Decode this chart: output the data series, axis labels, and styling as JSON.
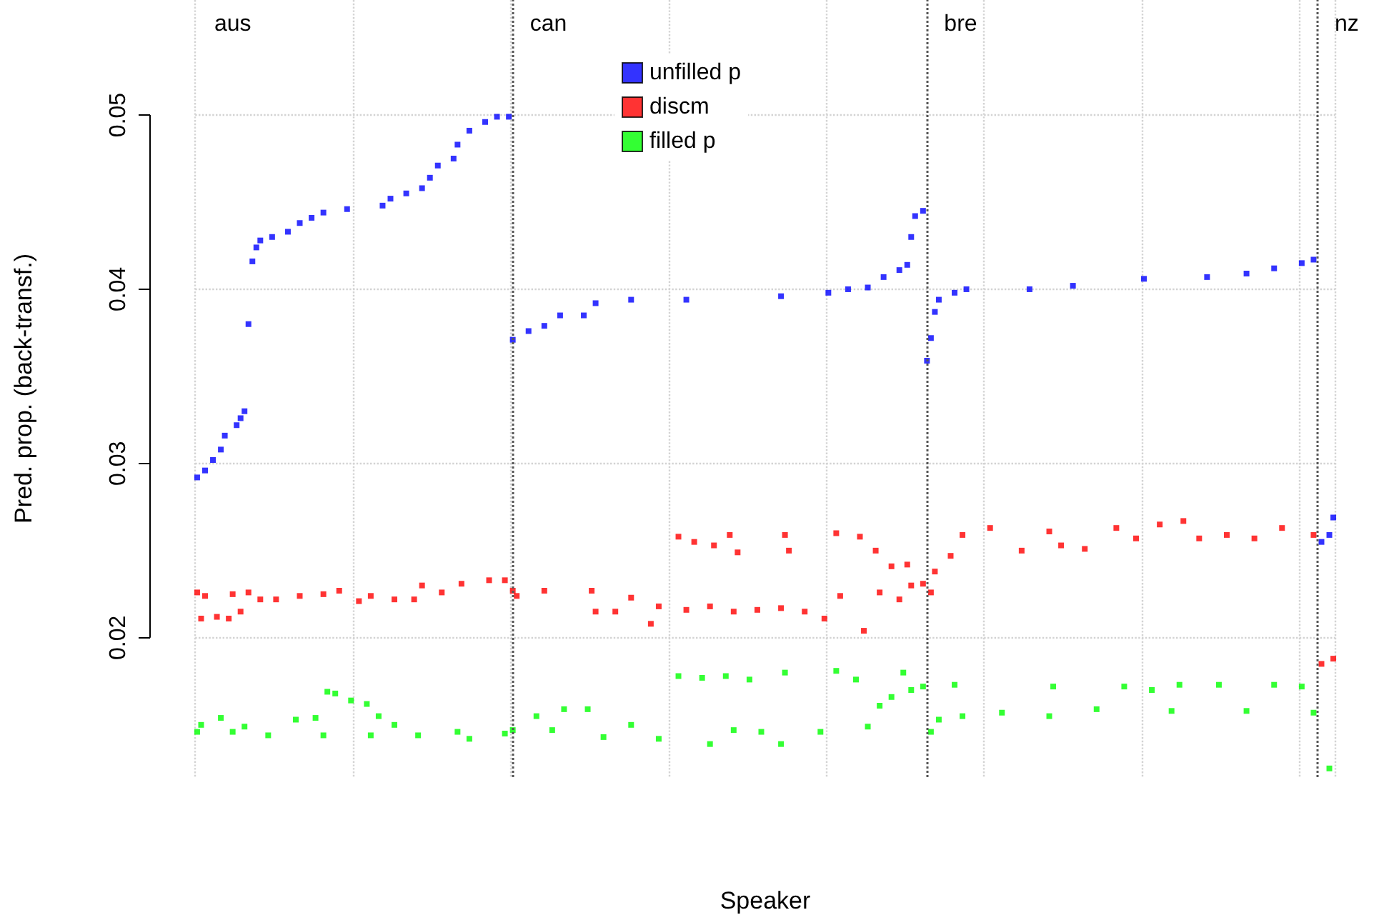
{
  "chart_data": {
    "type": "scatter",
    "xlabel": "Speaker",
    "ylabel": "Pred. prop. (back-transf.)",
    "ylim": [
      0.012,
      0.0566
    ],
    "yticks": [
      0.02,
      0.03,
      0.04,
      0.05
    ],
    "grid": true,
    "legend": "top",
    "marker": "square",
    "tick_labels": "y",
    "annotations": [
      "aus",
      "can",
      "bre",
      "nz"
    ],
    "categories": [
      null,
      null,
      null,
      null,
      null,
      null,
      null,
      null,
      null,
      null,
      null,
      null,
      null,
      null,
      null,
      null,
      null,
      null,
      null,
      null,
      null,
      null,
      null,
      null,
      null,
      null,
      null,
      null,
      null,
      null,
      null,
      null,
      null,
      null,
      null,
      null,
      null,
      null,
      null,
      null,
      null,
      null,
      null,
      null,
      null,
      null,
      null,
      null,
      null,
      null,
      null,
      null,
      null,
      null,
      null,
      null,
      null,
      null,
      null,
      null,
      null,
      null,
      null,
      null,
      null,
      null,
      null,
      null,
      null,
      null,
      null,
      null,
      null,
      null,
      null,
      null,
      null,
      null,
      null,
      null,
      null,
      null,
      null,
      null,
      null,
      null,
      null,
      null,
      null,
      null,
      null,
      null,
      null,
      null,
      null,
      null,
      null,
      null,
      null,
      null,
      null,
      null,
      null,
      null,
      null,
      null,
      null,
      null,
      null,
      null,
      null,
      null,
      null,
      null,
      null,
      null,
      null,
      null,
      null,
      null,
      null,
      null,
      null,
      null,
      null,
      null,
      null,
      null,
      null,
      null,
      null,
      null,
      null,
      null,
      null,
      null,
      null,
      null,
      null,
      null,
      null,
      null,
      null,
      null,
      null,
      null,
      null,
      null,
      null,
      null,
      null,
      null,
      null,
      null,
      null,
      null,
      null,
      null,
      null,
      null,
      null,
      null,
      null,
      null,
      null,
      null,
      null,
      null,
      null,
      null,
      null,
      null,
      null,
      null,
      null,
      null,
      null,
      null,
      null,
      null,
      null,
      null,
      null,
      null,
      null,
      null,
      null,
      null,
      null,
      null,
      null,
      null,
      null,
      null,
      null,
      null,
      null,
      null,
      null,
      null,
      null,
      null,
      null,
      null,
      null,
      null,
      null,
      null,
      null,
      null,
      null,
      null,
      null,
      null,
      null,
      null,
      null,
      null,
      null,
      null,
      null,
      null,
      null,
      null,
      null,
      null,
      null,
      null,
      null,
      null,
      null,
      null,
      null,
      null,
      null,
      null,
      null,
      null,
      null,
      null,
      null,
      null,
      null,
      null,
      null,
      null,
      null,
      null,
      null,
      null,
      null,
      null,
      null,
      null,
      null,
      null,
      null,
      null,
      null,
      null,
      null,
      null,
      null,
      null,
      null,
      null,
      null,
      null,
      null,
      null,
      null,
      null,
      null,
      null,
      null,
      null,
      null,
      null,
      null,
      null,
      null,
      null,
      null,
      null,
      null,
      null,
      null,
      null,
      null
    ],
    "series": [
      {
        "name": "unfilled p",
        "color": "#0000ff",
        "values": [
          0.0292,
          null,
          0.0296,
          null,
          0.0302,
          null,
          0.0308,
          0.0316,
          null,
          null,
          0.0322,
          0.0326,
          0.033,
          0.038,
          0.0416,
          0.0424,
          0.0428,
          null,
          null,
          0.043,
          null,
          null,
          null,
          0.0433,
          null,
          null,
          0.0438,
          null,
          null,
          0.0441,
          null,
          null,
          0.0444,
          null,
          null,
          null,
          null,
          null,
          0.0446,
          null,
          null,
          null,
          null,
          null,
          null,
          null,
          null,
          0.0448,
          null,
          0.0452,
          null,
          null,
          null,
          0.0455,
          null,
          null,
          null,
          0.0458,
          null,
          0.0464,
          null,
          0.0471,
          null,
          null,
          null,
          0.0475,
          0.0483,
          null,
          null,
          0.0491,
          null,
          null,
          null,
          0.0496,
          null,
          null,
          0.0499,
          null,
          null,
          0.0499,
          0.0371,
          null,
          null,
          null,
          0.0376,
          null,
          null,
          null,
          0.0379,
          null,
          null,
          null,
          0.0385,
          null,
          null,
          null,
          null,
          null,
          0.0385,
          null,
          null,
          0.0392,
          null,
          null,
          null,
          null,
          null,
          null,
          null,
          null,
          0.0394,
          null,
          null,
          null,
          null,
          null,
          null,
          null,
          null,
          null,
          null,
          null,
          null,
          null,
          0.0394,
          null,
          null,
          null,
          null,
          null,
          null,
          null,
          null,
          null,
          null,
          null,
          null,
          null,
          null,
          null,
          null,
          null,
          null,
          null,
          null,
          null,
          null,
          null,
          0.0396,
          null,
          null,
          null,
          null,
          null,
          null,
          null,
          null,
          null,
          null,
          null,
          0.0398,
          null,
          null,
          null,
          null,
          0.04,
          null,
          null,
          null,
          null,
          0.0401,
          null,
          null,
          null,
          0.0407,
          null,
          null,
          null,
          0.0411,
          null,
          0.0414,
          0.043,
          0.0442,
          null,
          0.0445,
          0.0359,
          0.0372,
          0.0387,
          0.0394,
          null,
          null,
          null,
          0.0398,
          null,
          null,
          0.04,
          null,
          null,
          null,
          null,
          null,
          null,
          null,
          null,
          null,
          null,
          null,
          null,
          null,
          null,
          null,
          0.04,
          null,
          null,
          null,
          null,
          null,
          null,
          null,
          null,
          null,
          null,
          0.0402,
          null,
          null,
          null,
          null,
          null,
          null,
          null,
          null,
          null,
          null,
          null,
          null,
          null,
          null,
          null,
          null,
          null,
          0.0406,
          null,
          null,
          null,
          null,
          null,
          null,
          null,
          null,
          null,
          null,
          null,
          null,
          null,
          null,
          null,
          0.0407,
          null,
          null,
          null,
          null,
          null,
          null,
          null,
          null,
          null,
          0.0409,
          null,
          null,
          null,
          null,
          null,
          null,
          0.0412,
          null,
          null,
          null,
          null,
          null,
          null,
          0.0415,
          null,
          null,
          0.0417,
          null,
          0.0255,
          null,
          0.0259,
          0.0269
        ]
      },
      {
        "name": "discm",
        "color": "#ff0000",
        "values": [
          0.0226,
          0.0211,
          0.0224,
          null,
          null,
          0.0212,
          null,
          null,
          0.0211,
          0.0225,
          null,
          0.0215,
          null,
          0.0226,
          null,
          null,
          0.0222,
          null,
          null,
          null,
          0.0222,
          null,
          null,
          null,
          null,
          null,
          0.0224,
          null,
          null,
          null,
          null,
          null,
          0.0225,
          null,
          null,
          null,
          0.0227,
          null,
          null,
          null,
          null,
          0.0221,
          null,
          null,
          0.0224,
          null,
          null,
          null,
          null,
          null,
          0.0222,
          null,
          null,
          null,
          null,
          0.0222,
          null,
          0.023,
          null,
          null,
          null,
          null,
          0.0226,
          null,
          null,
          null,
          null,
          0.0231,
          null,
          null,
          null,
          null,
          null,
          null,
          0.0233,
          null,
          null,
          null,
          0.0233,
          null,
          0.0227,
          0.0224,
          null,
          null,
          null,
          null,
          null,
          null,
          0.0227,
          null,
          null,
          null,
          null,
          null,
          null,
          null,
          null,
          null,
          null,
          null,
          0.0227,
          0.0215,
          null,
          null,
          null,
          null,
          0.0215,
          null,
          null,
          null,
          0.0223,
          null,
          null,
          null,
          null,
          0.0208,
          null,
          0.0218,
          null,
          null,
          null,
          null,
          0.0258,
          null,
          0.0216,
          null,
          0.0255,
          null,
          null,
          null,
          0.0218,
          0.0253,
          null,
          null,
          null,
          0.0259,
          0.0215,
          0.0249,
          null,
          null,
          null,
          null,
          0.0216,
          null,
          null,
          null,
          null,
          null,
          0.0217,
          0.0259,
          0.025,
          null,
          null,
          null,
          0.0215,
          null,
          null,
          null,
          null,
          0.0211,
          null,
          null,
          0.026,
          0.0224,
          null,
          null,
          null,
          null,
          0.0258,
          0.0204,
          null,
          null,
          0.025,
          0.0226,
          null,
          null,
          0.0241,
          null,
          0.0222,
          null,
          0.0242,
          0.023,
          null,
          null,
          0.0231,
          null,
          0.0226,
          0.0238,
          null,
          null,
          null,
          0.0247,
          null,
          null,
          0.0259,
          null,
          null,
          null,
          null,
          null,
          null,
          0.0263,
          null,
          null,
          null,
          null,
          null,
          null,
          null,
          0.025,
          null,
          null,
          null,
          null,
          null,
          null,
          0.0261,
          null,
          null,
          0.0253,
          null,
          null,
          null,
          null,
          null,
          0.0251,
          null,
          null,
          null,
          null,
          null,
          null,
          null,
          0.0263,
          null,
          null,
          null,
          null,
          0.0257,
          null,
          null,
          null,
          null,
          null,
          0.0265,
          null,
          null,
          null,
          null,
          null,
          0.0267,
          null,
          null,
          null,
          0.0257,
          null,
          null,
          null,
          null,
          null,
          null,
          0.0259,
          null,
          null,
          null,
          null,
          null,
          null,
          0.0257,
          null,
          null,
          null,
          null,
          null,
          null,
          0.0263,
          null,
          null,
          null,
          null,
          null,
          null,
          null,
          0.0259,
          null,
          0.0185,
          null,
          null,
          0.0188
        ]
      },
      {
        "name": "filled p",
        "color": "#00ff00",
        "values": [
          0.0146,
          0.015,
          null,
          null,
          null,
          null,
          0.0154,
          null,
          null,
          0.0146,
          null,
          null,
          0.0149,
          null,
          null,
          null,
          null,
          null,
          0.0144,
          null,
          null,
          null,
          null,
          null,
          null,
          0.0153,
          null,
          null,
          null,
          null,
          0.0154,
          null,
          0.0144,
          0.0169,
          null,
          0.0168,
          null,
          null,
          null,
          0.0164,
          null,
          null,
          null,
          0.0162,
          0.0144,
          null,
          0.0155,
          null,
          null,
          null,
          0.015,
          null,
          null,
          null,
          null,
          null,
          0.0144,
          null,
          null,
          null,
          null,
          null,
          null,
          null,
          null,
          null,
          0.0146,
          null,
          null,
          0.0142,
          null,
          null,
          null,
          null,
          null,
          null,
          null,
          null,
          0.0145,
          null,
          0.0147,
          null,
          null,
          null,
          null,
          null,
          0.0155,
          null,
          null,
          null,
          0.0147,
          null,
          null,
          0.0159,
          null,
          null,
          null,
          null,
          null,
          0.0159,
          null,
          null,
          null,
          0.0143,
          null,
          null,
          null,
          null,
          null,
          null,
          0.015,
          null,
          null,
          null,
          null,
          null,
          null,
          0.0142,
          null,
          null,
          null,
          null,
          0.0178,
          null,
          null,
          null,
          null,
          null,
          0.0177,
          null,
          0.0139,
          null,
          null,
          null,
          0.0178,
          null,
          0.0147,
          null,
          null,
          null,
          0.0176,
          null,
          null,
          0.0146,
          null,
          null,
          null,
          null,
          0.0139,
          0.018,
          null,
          null,
          null,
          null,
          null,
          null,
          null,
          null,
          0.0146,
          null,
          null,
          null,
          0.0181,
          null,
          null,
          null,
          null,
          0.0176,
          null,
          null,
          0.0149,
          null,
          null,
          0.0161,
          null,
          null,
          0.0166,
          null,
          null,
          0.018,
          null,
          0.017,
          null,
          null,
          0.0172,
          null,
          0.0146,
          null,
          0.0153,
          null,
          null,
          null,
          0.0173,
          null,
          0.0155,
          null,
          null,
          null,
          null,
          null,
          null,
          null,
          null,
          null,
          0.0157,
          null,
          null,
          null,
          null,
          null,
          null,
          null,
          null,
          null,
          null,
          null,
          0.0155,
          0.0172,
          null,
          null,
          null,
          null,
          null,
          null,
          null,
          null,
          null,
          null,
          0.0159,
          null,
          null,
          null,
          null,
          null,
          null,
          0.0172,
          null,
          null,
          null,
          null,
          null,
          null,
          0.017,
          null,
          null,
          null,
          null,
          0.0158,
          null,
          0.0173,
          null,
          null,
          null,
          null,
          null,
          null,
          null,
          null,
          null,
          0.0173,
          null,
          null,
          null,
          null,
          null,
          null,
          0.0158,
          null,
          null,
          null,
          null,
          null,
          null,
          0.0173,
          null,
          null,
          null,
          null,
          null,
          null,
          0.0172,
          null,
          null,
          0.0157,
          null,
          null,
          null,
          0.0125,
          null
        ]
      }
    ]
  }
}
